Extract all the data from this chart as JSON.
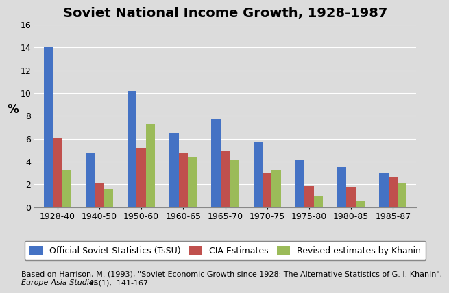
{
  "title": "Soviet National Income Growth, 1928-1987",
  "categories": [
    "1928-40",
    "1940-50",
    "1950-60",
    "1960-65",
    "1965-70",
    "1970-75",
    "1975-80",
    "1980-85",
    "1985-87"
  ],
  "series": {
    "Official Soviet Statistics (TsSU)": [
      14.0,
      4.8,
      10.2,
      6.5,
      7.7,
      5.7,
      4.2,
      3.5,
      3.0
    ],
    "CIA Estimates": [
      6.1,
      2.1,
      5.2,
      4.8,
      4.9,
      3.0,
      1.9,
      1.8,
      2.7
    ],
    "Revised estimates by Khanin": [
      3.2,
      1.6,
      7.3,
      4.4,
      4.1,
      3.2,
      1.0,
      0.6,
      2.1
    ]
  },
  "colors": {
    "Official Soviet Statistics (TsSU)": "#4472C4",
    "CIA Estimates": "#C0504D",
    "Revised estimates by Khanin": "#9BBB59"
  },
  "ylabel": "%",
  "ylim": [
    0,
    16
  ],
  "yticks": [
    0,
    2,
    4,
    6,
    8,
    10,
    12,
    14,
    16
  ],
  "background_color": "#DCDCDC",
  "plot_bg_color": "#DCDCDC",
  "caption_line1": "Based on Harrison, M. (1993), \"Soviet Economic Growth since 1928: The Alternative Statistics of G. I. Khanin\",",
  "caption_line2_italic": "Europe-Asia Studies",
  "caption_line2_normal": " 45(1),  141-167.",
  "title_fontsize": 14,
  "legend_fontsize": 9,
  "axis_fontsize": 9,
  "caption_fontsize": 8
}
